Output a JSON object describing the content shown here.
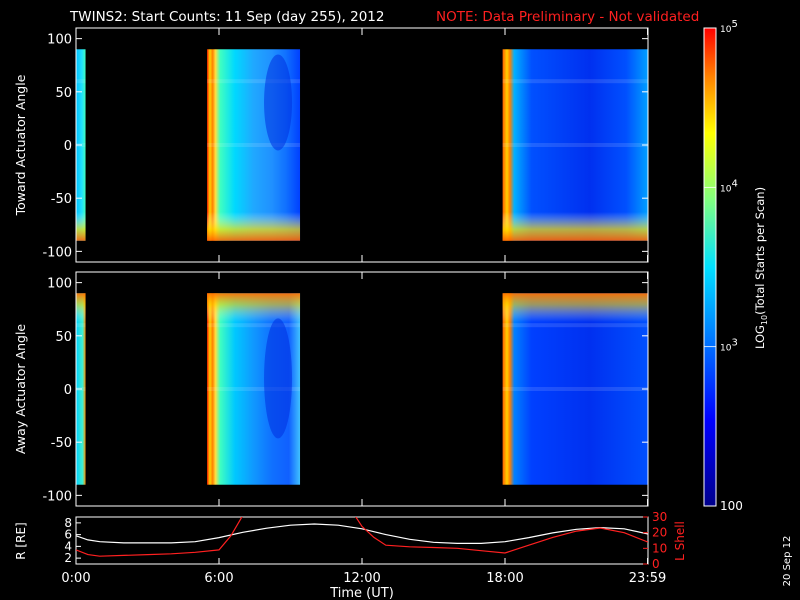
{
  "title": {
    "main": "TWINS2: Start Counts: 11 Sep (day 255), 2012",
    "note": "NOTE: Data Preliminary - Not validated",
    "note_color": "#ff2020"
  },
  "stamp": "20 Sep 12",
  "chart_data": [
    {
      "type": "heatmap",
      "panel": "top",
      "ylabel": "Toward Actuator Angle",
      "ylim": [
        -110,
        110
      ],
      "yticks": [
        "100",
        "50",
        "0",
        "-50",
        "-100"
      ],
      "yticks_values": [
        100,
        50,
        0,
        -50,
        -100
      ],
      "x_range_hours": [
        0,
        24
      ],
      "data_blocks_hours": [
        [
          0.0,
          0.4
        ],
        [
          5.5,
          9.4
        ],
        [
          17.9,
          24.0
        ]
      ],
      "angle_range": [
        -90,
        90
      ]
    },
    {
      "type": "heatmap",
      "panel": "middle",
      "ylabel": "Away Actuator Angle",
      "ylim": [
        -110,
        110
      ],
      "yticks": [
        "100",
        "50",
        "0",
        "-50",
        "-100"
      ],
      "yticks_values": [
        100,
        50,
        0,
        -50,
        -100
      ],
      "x_range_hours": [
        0,
        24
      ],
      "data_blocks_hours": [
        [
          0.0,
          0.4
        ],
        [
          5.5,
          9.4
        ],
        [
          17.9,
          24.0
        ]
      ],
      "angle_range": [
        -90,
        90
      ]
    },
    {
      "type": "line",
      "panel": "bottom",
      "ylabel_left": "R [RE]",
      "ylabel_right": "L Shell",
      "xlabel": "Time (UT)",
      "xticks": [
        "0:00",
        "6:00",
        "12:00",
        "18:00",
        "23:59"
      ],
      "xticks_values": [
        0,
        6,
        12,
        18,
        23.98
      ],
      "yticks_left": [
        "8",
        "6",
        "4",
        "2"
      ],
      "yticks_left_values": [
        8,
        6,
        4,
        2
      ],
      "yticks_right": [
        "30",
        "20",
        "10",
        "0"
      ],
      "yticks_right_values": [
        30,
        20,
        10,
        0
      ],
      "ylim_left": [
        1,
        9
      ],
      "ylim_right": [
        0,
        30
      ],
      "series": [
        {
          "axis": "left",
          "color": "#ffffff",
          "x": [
            0,
            0.5,
            1,
            2,
            3,
            4,
            5,
            6,
            7,
            8,
            9,
            10,
            11,
            12,
            12.5,
            13,
            14,
            15,
            16,
            17,
            18,
            19,
            20,
            21,
            22,
            23,
            24
          ],
          "y": [
            5.8,
            5.1,
            4.8,
            4.6,
            4.6,
            4.6,
            4.8,
            5.5,
            6.4,
            7.1,
            7.6,
            7.8,
            7.6,
            7.0,
            6.5,
            6.0,
            5.2,
            4.7,
            4.5,
            4.5,
            4.8,
            5.5,
            6.3,
            6.9,
            7.2,
            7.0,
            6.1
          ]
        },
        {
          "axis": "right",
          "color": "#ff2020",
          "segments": [
            {
              "x": [
                0,
                0.5,
                1,
                2,
                3,
                4,
                5,
                6,
                6.5,
                7.0
              ],
              "y": [
                9,
                6,
                5,
                5.5,
                6,
                6.5,
                7.5,
                9,
                18,
                31
              ]
            },
            {
              "x": [
                11.7,
                12,
                12.5,
                13,
                14,
                15,
                16,
                17,
                18,
                19,
                20,
                21,
                22,
                23,
                24
              ],
              "y": [
                31,
                24,
                17,
                12,
                11,
                10.5,
                10,
                8.5,
                7,
                12,
                17,
                21,
                23,
                20,
                14
              ]
            }
          ]
        }
      ]
    }
  ],
  "colorbar": {
    "label": "LOG10(Total Starts per Scan)",
    "label_base": "LOG",
    "label_sub": "10",
    "label_rest": "(Total Starts per Scan)",
    "ticks": [
      {
        "base": "10",
        "exp": "5",
        "value": 100000
      },
      {
        "base": "10",
        "exp": "4",
        "value": 10000
      },
      {
        "base": "10",
        "exp": "3",
        "value": 1000
      },
      {
        "base": "100",
        "exp": "",
        "value": 100
      }
    ],
    "range": [
      100,
      100000
    ],
    "log_scale": true
  }
}
